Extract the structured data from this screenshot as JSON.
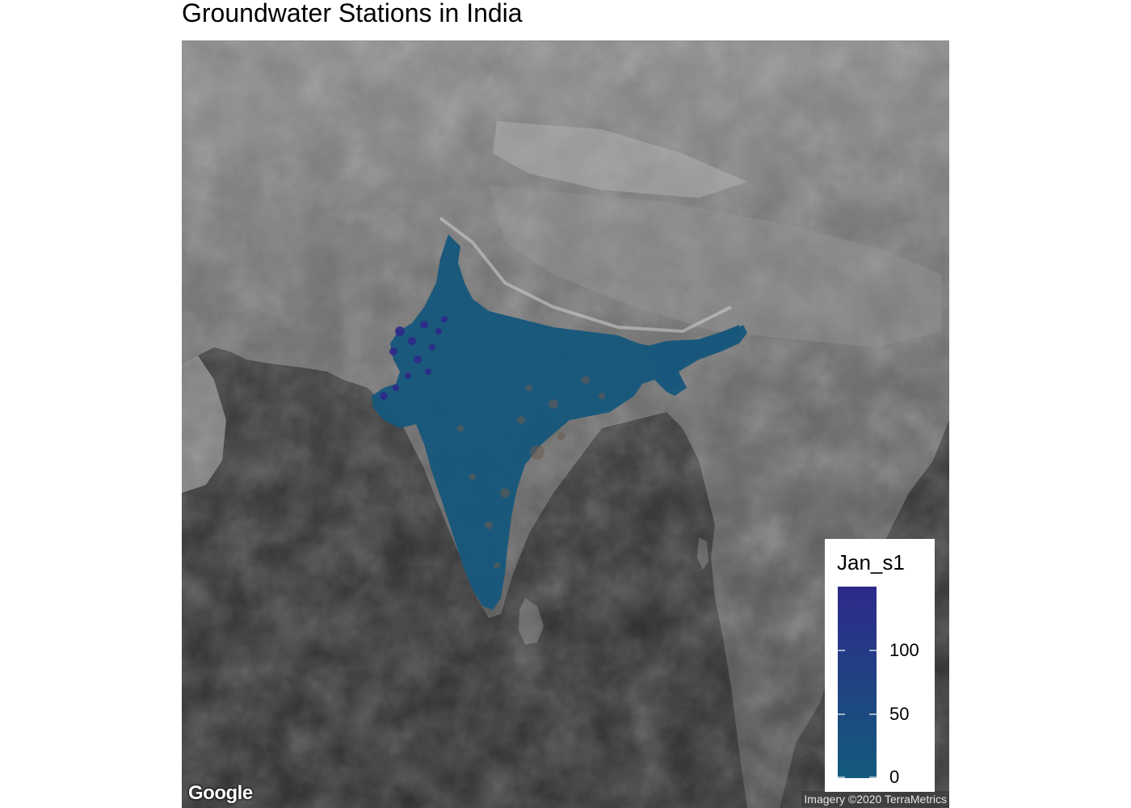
{
  "map": {
    "title": "Groundwater Stations in India",
    "basemap_logo": "Google",
    "attribution": "Imagery ©2020 TerraMetrics",
    "point_color": "#1d5a8a",
    "high_value_color": "#2c2c8c"
  },
  "legend": {
    "title": "Jan_s1",
    "ticks": [
      {
        "value": 0,
        "label": "0"
      },
      {
        "value": 50,
        "label": "50"
      },
      {
        "value": 100,
        "label": "100"
      }
    ],
    "range": [
      0,
      150
    ],
    "color_low": "#135a7c",
    "color_high": "#2d2a8a"
  }
}
